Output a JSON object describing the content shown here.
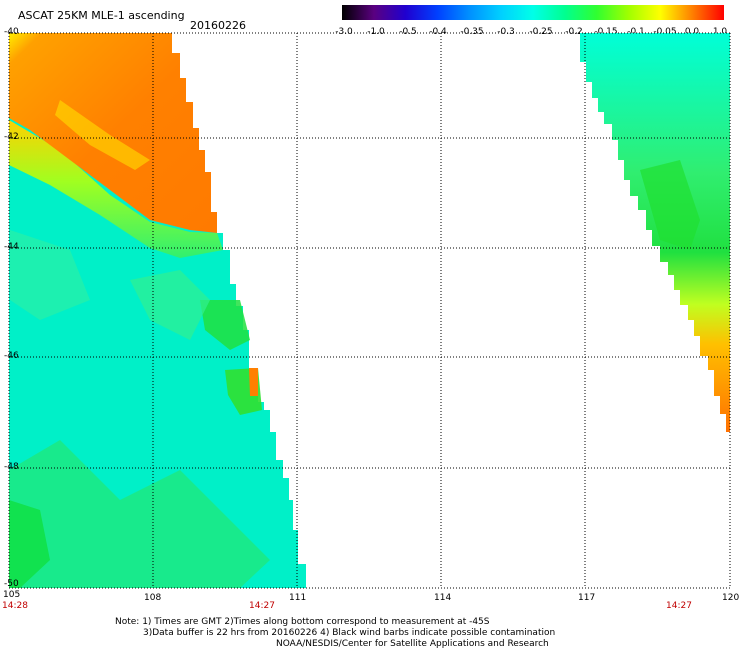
{
  "header": {
    "title": "ASCAT 25KM MLE-1 ascending",
    "date": "20160226"
  },
  "colorbar": {
    "labels": [
      "-3.0",
      "-1.0",
      "-0.5",
      "-0.4",
      "-0.35",
      "-0.3",
      "-0.25",
      "-0.2",
      "-0.15",
      "-0.1",
      "-0.05",
      "0.0",
      "1.0"
    ],
    "colors": [
      "#000000",
      "#5a0080",
      "#2000d0",
      "#0040ff",
      "#0090ff",
      "#00d0ff",
      "#00ffe8",
      "#00ff90",
      "#30ff30",
      "#a0ff00",
      "#ffff00",
      "#ff8000",
      "#ff0000"
    ]
  },
  "axes": {
    "x_ticks": [
      "105",
      "108",
      "111",
      "114",
      "117",
      "120"
    ],
    "y_ticks": [
      "-40",
      "-42",
      "-44",
      "-46",
      "-48",
      "-50"
    ],
    "times": [
      "14:28",
      "14:27",
      "14:27"
    ]
  },
  "notes": {
    "line1": "Note: 1) Times are GMT 2)Times along bottom correspond to measurement at -45S",
    "line2": "3)Data buffer is 22 hrs from 20160226 4) Black wind barbs indicate possible contamination",
    "line3": "NOAA/NESDIS/Center for Satellite Applications and Research"
  }
}
